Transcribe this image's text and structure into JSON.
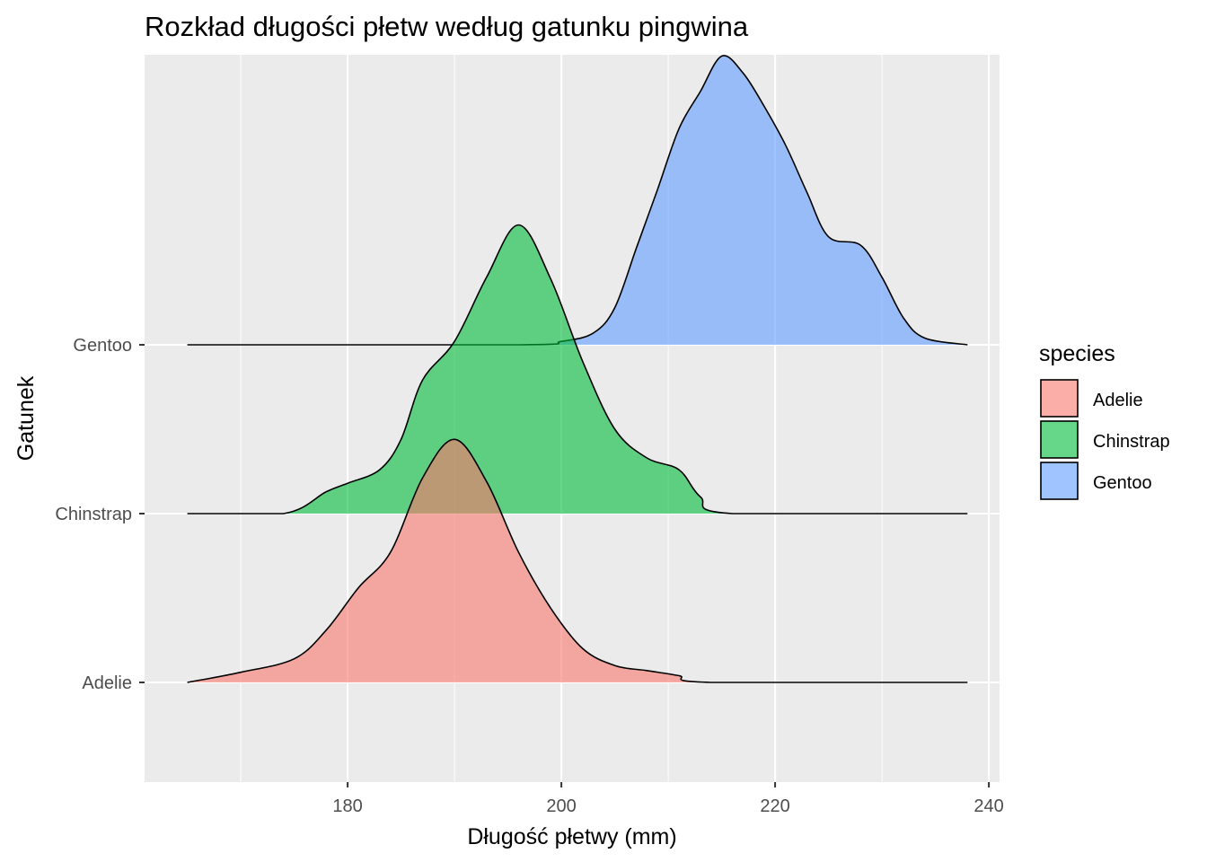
{
  "chart_data": {
    "type": "ridgeline",
    "title": "Rozkład długości płetw według gatunku pingwina",
    "xlabel": "Długość płetwy (mm)",
    "ylabel": "Gatunek",
    "xlim": [
      161,
      241
    ],
    "x_ticks": [
      180,
      200,
      220,
      240
    ],
    "x_minor_ticks": [
      170,
      190,
      210,
      230
    ],
    "density_range": [
      165,
      238
    ],
    "grid": true,
    "legend": {
      "title": "species",
      "placement": "right",
      "entries": [
        "Adelie",
        "Chinstrap",
        "Gentoo"
      ]
    },
    "scale_max": 1.7,
    "series": [
      {
        "name": "Adelie",
        "color": "#F8766D",
        "baseline_level": 1,
        "points": [
          [
            165,
            0.0
          ],
          [
            170,
            0.06
          ],
          [
            175,
            0.14
          ],
          [
            178,
            0.31
          ],
          [
            181,
            0.56
          ],
          [
            184,
            0.77
          ],
          [
            187,
            1.21
          ],
          [
            190,
            1.44
          ],
          [
            193,
            1.19
          ],
          [
            196,
            0.77
          ],
          [
            199,
            0.44
          ],
          [
            202,
            0.2
          ],
          [
            205,
            0.1
          ],
          [
            208,
            0.07
          ],
          [
            211,
            0.04
          ],
          [
            214,
            0.0
          ],
          [
            238,
            0.0
          ]
        ]
      },
      {
        "name": "Chinstrap",
        "color": "#00BA38",
        "baseline_level": 2,
        "points": [
          [
            165,
            0.0
          ],
          [
            174,
            0.0
          ],
          [
            178,
            0.13
          ],
          [
            180,
            0.18
          ],
          [
            183,
            0.26
          ],
          [
            185,
            0.44
          ],
          [
            187,
            0.79
          ],
          [
            190,
            1.02
          ],
          [
            193,
            1.4
          ],
          [
            196,
            1.71
          ],
          [
            199,
            1.39
          ],
          [
            202,
            0.9
          ],
          [
            205,
            0.5
          ],
          [
            208,
            0.33
          ],
          [
            211,
            0.26
          ],
          [
            213,
            0.1
          ],
          [
            216,
            0.0
          ],
          [
            238,
            0.0
          ]
        ]
      },
      {
        "name": "Gentoo",
        "color": "#619CFF",
        "baseline_level": 3,
        "points": [
          [
            165,
            0.0
          ],
          [
            196,
            0.0
          ],
          [
            200,
            0.02
          ],
          [
            203,
            0.07
          ],
          [
            205,
            0.22
          ],
          [
            207,
            0.57
          ],
          [
            209,
            0.92
          ],
          [
            211,
            1.28
          ],
          [
            213,
            1.5
          ],
          [
            215,
            1.71
          ],
          [
            217,
            1.61
          ],
          [
            219,
            1.41
          ],
          [
            221,
            1.18
          ],
          [
            223,
            0.9
          ],
          [
            225,
            0.64
          ],
          [
            228,
            0.59
          ],
          [
            230,
            0.4
          ],
          [
            232,
            0.16
          ],
          [
            234,
            0.04
          ],
          [
            238,
            0.0
          ]
        ]
      }
    ]
  }
}
